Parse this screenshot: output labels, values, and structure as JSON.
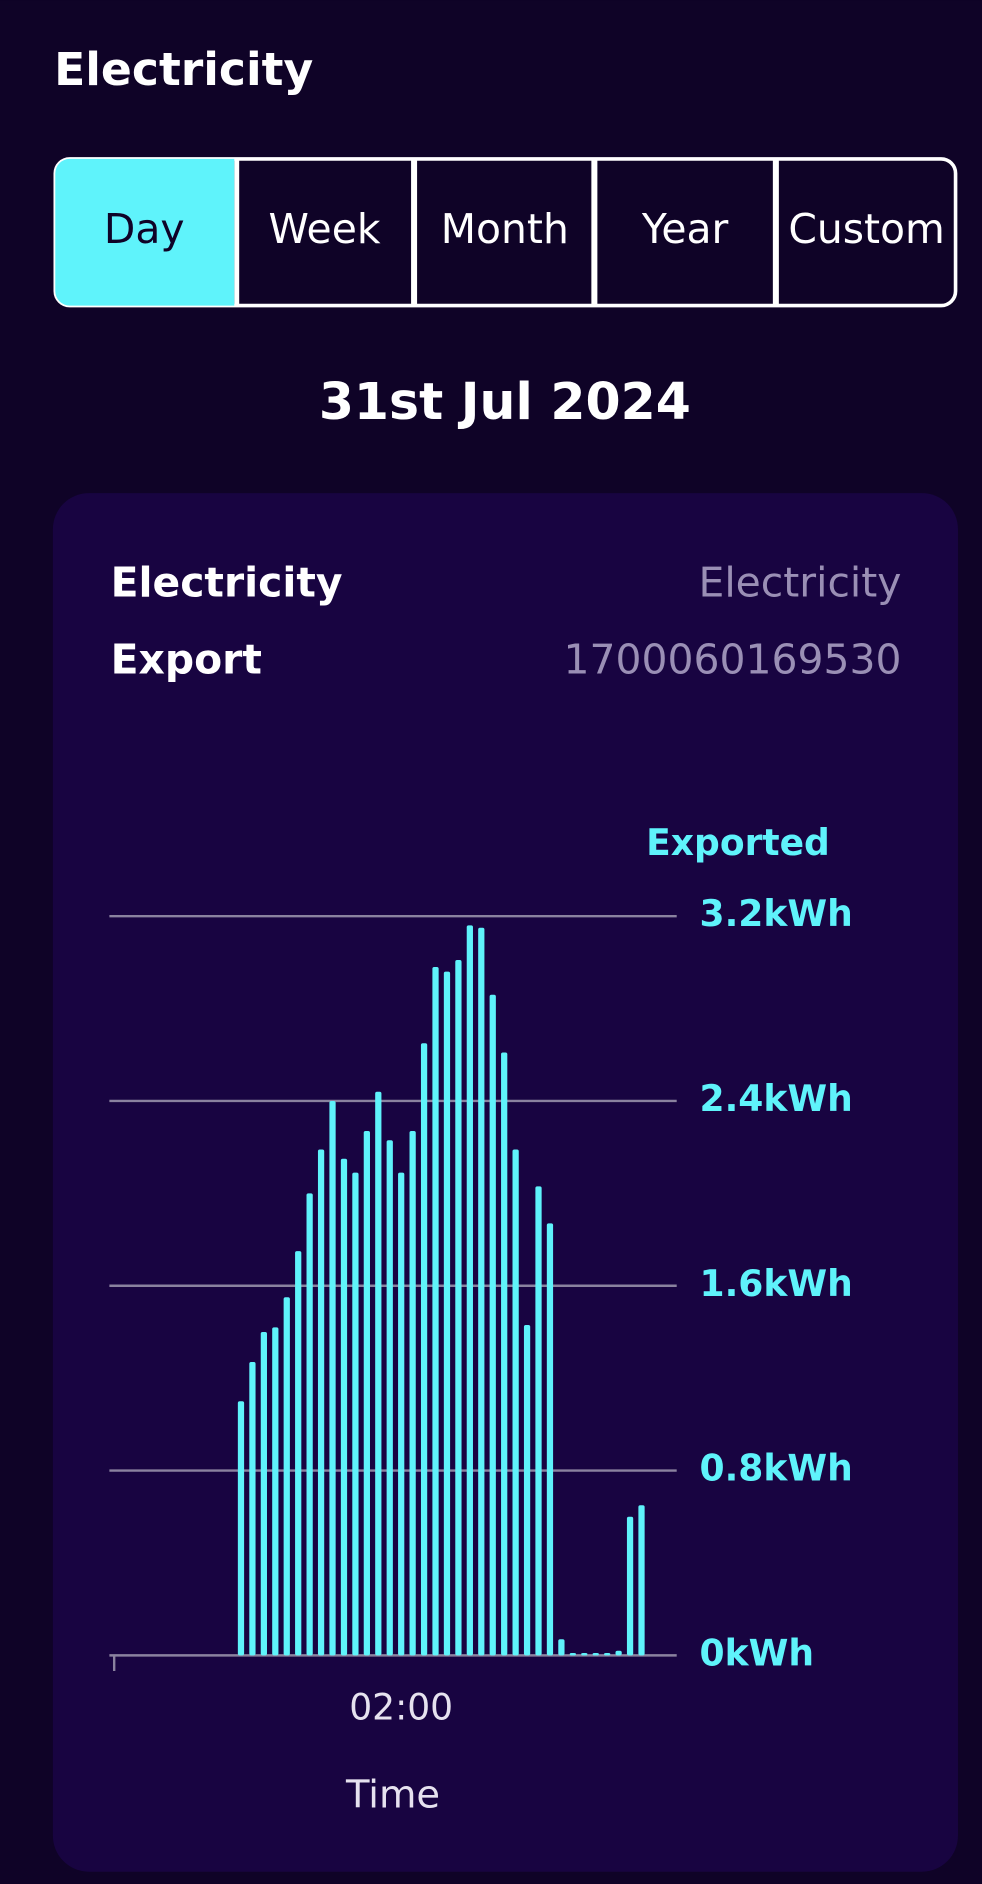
{
  "header": {
    "title": "Electricity"
  },
  "tabs": [
    "Day",
    "Week",
    "Month",
    "Year",
    "Custom"
  ],
  "date": "31st Jul 2024",
  "card": {
    "title_lines": [
      "Electricity",
      "Export"
    ],
    "meter_lines": [
      "Electricity",
      "1700060169530"
    ]
  },
  "chart_data": {
    "type": "bar",
    "y_axis_title": "Exported",
    "x_axis_title": "Time",
    "categories": [
      null,
      null,
      null,
      null,
      null,
      null,
      null,
      null,
      null,
      null,
      null,
      null,
      null,
      null,
      null,
      null,
      null,
      null,
      null,
      null,
      null,
      null,
      null,
      null,
      null,
      "02:00",
      null,
      null,
      null,
      null,
      null,
      null,
      null,
      null,
      null,
      null,
      null,
      null,
      null,
      null,
      null,
      null,
      null,
      null,
      null,
      null,
      null,
      null
    ],
    "values": [
      0,
      0,
      0,
      0,
      0,
      0,
      0,
      0,
      0,
      0,
      0,
      1.1,
      1.27,
      1.4,
      1.42,
      1.55,
      1.75,
      2.0,
      2.19,
      2.4,
      2.15,
      2.09,
      2.27,
      2.44,
      2.23,
      2.09,
      2.27,
      2.65,
      2.98,
      2.96,
      3.01,
      3.16,
      3.15,
      2.86,
      2.61,
      2.19,
      1.43,
      2.03,
      1.87,
      0.07,
      0.01,
      0.01,
      0.01,
      0.01,
      0.02,
      0.6,
      0.65,
      0
    ],
    "color": "#5ff3fb",
    "ylim": [
      0,
      3.2
    ],
    "yticks": [
      {
        "value": 0,
        "label": "0kWh"
      },
      {
        "value": 0.8,
        "label": "0.8kWh"
      },
      {
        "value": 1.6,
        "label": "1.6kWh"
      },
      {
        "value": 2.4,
        "label": "2.4kWh"
      },
      {
        "value": 3.2,
        "label": "3.2kWh"
      }
    ],
    "grid": true
  }
}
